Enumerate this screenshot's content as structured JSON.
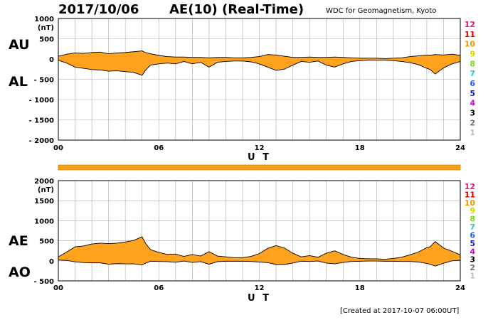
{
  "header": {
    "date": "2017/10/06",
    "title": "AE(10) (Real-Time)",
    "source": "WDC for Geomagnetism, Kyoto"
  },
  "footer": {
    "created": "[Created at 2017-10-07 06:00UT]"
  },
  "colors": {
    "fill": "#ffa21e",
    "grid": "#aaaaaa",
    "line": "#000000",
    "band": "#f5a11e"
  },
  "station_labels": [
    {
      "text": "12",
      "color": "#e0187a"
    },
    {
      "text": "11",
      "color": "#d90000"
    },
    {
      "text": "10",
      "color": "#ee9a00"
    },
    {
      "text": "9",
      "color": "#d6d600"
    },
    {
      "text": "8",
      "color": "#7ed62a"
    },
    {
      "text": "7",
      "color": "#26c8c8"
    },
    {
      "text": "6",
      "color": "#2060ff"
    },
    {
      "text": "5",
      "color": "#1a1ab8"
    },
    {
      "text": "4",
      "color": "#d000d0"
    },
    {
      "text": "3",
      "color": "#000000"
    },
    {
      "text": "2",
      "color": "#707070"
    },
    {
      "text": "1",
      "color": "#bdbdbd"
    }
  ],
  "chart_data": [
    {
      "type": "area",
      "units": "(nT)",
      "xlabel": "U T",
      "ylim": [
        -2000,
        1000
      ],
      "yticks": [
        1000,
        500,
        0,
        -500,
        -1000,
        -1500,
        -2000
      ],
      "ytick_labels": [
        "1000",
        "500",
        "0",
        "- 500",
        "- 1000",
        "- 1500",
        "- 2000"
      ],
      "xlim": [
        0,
        24
      ],
      "xticks": [
        0,
        6,
        12,
        18,
        24
      ],
      "xtick_labels": [
        "00",
        "06",
        "12",
        "18",
        "24"
      ],
      "grid": true,
      "upper_label": "AU",
      "lower_label": "AL",
      "x": [
        0,
        0.5,
        1,
        1.5,
        2,
        2.5,
        3,
        3.5,
        4,
        4.5,
        5,
        5.2,
        5.5,
        6,
        6.5,
        7,
        7.5,
        8,
        8.5,
        9,
        9.5,
        10,
        10.5,
        11,
        11.5,
        12,
        12.5,
        13,
        13.5,
        14,
        14.5,
        15,
        15.5,
        16,
        16.5,
        17,
        17.5,
        18,
        18.5,
        19,
        19.5,
        20,
        20.5,
        21,
        21.5,
        22,
        22.2,
        22.5,
        23,
        23.5,
        24
      ],
      "AU": [
        70,
        120,
        150,
        140,
        160,
        170,
        130,
        150,
        160,
        180,
        200,
        160,
        130,
        90,
        60,
        50,
        50,
        40,
        40,
        30,
        40,
        40,
        30,
        30,
        40,
        60,
        110,
        100,
        70,
        40,
        40,
        50,
        40,
        40,
        50,
        40,
        30,
        20,
        20,
        20,
        10,
        20,
        30,
        60,
        80,
        100,
        90,
        110,
        100,
        120,
        90
      ],
      "AL": [
        -30,
        -100,
        -200,
        -230,
        -260,
        -270,
        -300,
        -290,
        -310,
        -330,
        -400,
        -280,
        -150,
        -120,
        -100,
        -120,
        -60,
        -120,
        -80,
        -200,
        -80,
        -60,
        -50,
        -50,
        -70,
        -120,
        -200,
        -280,
        -250,
        -150,
        -60,
        -80,
        -50,
        -150,
        -200,
        -120,
        -60,
        -40,
        -30,
        -30,
        -30,
        -40,
        -60,
        -90,
        -140,
        -230,
        -260,
        -370,
        -220,
        -120,
        -60
      ]
    },
    {
      "type": "area",
      "units": "(nT)",
      "xlabel": "U T",
      "ylim": [
        -500,
        2000
      ],
      "yticks": [
        2000,
        1500,
        1000,
        500,
        0,
        -500
      ],
      "ytick_labels": [
        "2000",
        "1500",
        "1000",
        "500",
        "0",
        "- 500"
      ],
      "xlim": [
        0,
        24
      ],
      "xticks": [
        0,
        6,
        12,
        18,
        24
      ],
      "xtick_labels": [
        "00",
        "06",
        "12",
        "18",
        "24"
      ],
      "grid": true,
      "upper_label": "AE",
      "lower_label": "AO",
      "x": [
        0,
        0.5,
        1,
        1.5,
        2,
        2.5,
        3,
        3.5,
        4,
        4.5,
        5,
        5.2,
        5.5,
        6,
        6.5,
        7,
        7.5,
        8,
        8.5,
        9,
        9.5,
        10,
        10.5,
        11,
        11.5,
        12,
        12.5,
        13,
        13.5,
        14,
        14.5,
        15,
        15.5,
        16,
        16.5,
        17,
        17.5,
        18,
        18.5,
        19,
        19.5,
        20,
        20.5,
        21,
        21.5,
        22,
        22.2,
        22.5,
        23,
        23.5,
        24
      ],
      "AE": [
        100,
        220,
        350,
        370,
        420,
        440,
        430,
        440,
        470,
        510,
        600,
        440,
        280,
        210,
        160,
        170,
        110,
        160,
        120,
        230,
        120,
        100,
        80,
        80,
        110,
        180,
        310,
        380,
        320,
        190,
        100,
        130,
        90,
        190,
        250,
        160,
        90,
        60,
        50,
        50,
        40,
        60,
        90,
        150,
        220,
        330,
        350,
        480,
        320,
        240,
        150
      ],
      "AO": [
        20,
        10,
        -25,
        -45,
        -50,
        -50,
        -85,
        -70,
        -75,
        -75,
        -100,
        -60,
        -10,
        -15,
        -20,
        -35,
        -5,
        -40,
        -20,
        -85,
        -20,
        -10,
        -10,
        -10,
        -15,
        -30,
        -45,
        -90,
        -90,
        -55,
        -10,
        -15,
        -5,
        -55,
        -75,
        -40,
        -15,
        -10,
        -5,
        -5,
        -10,
        -10,
        -15,
        -15,
        -30,
        -65,
        -85,
        -130,
        -60,
        0,
        15
      ]
    }
  ]
}
